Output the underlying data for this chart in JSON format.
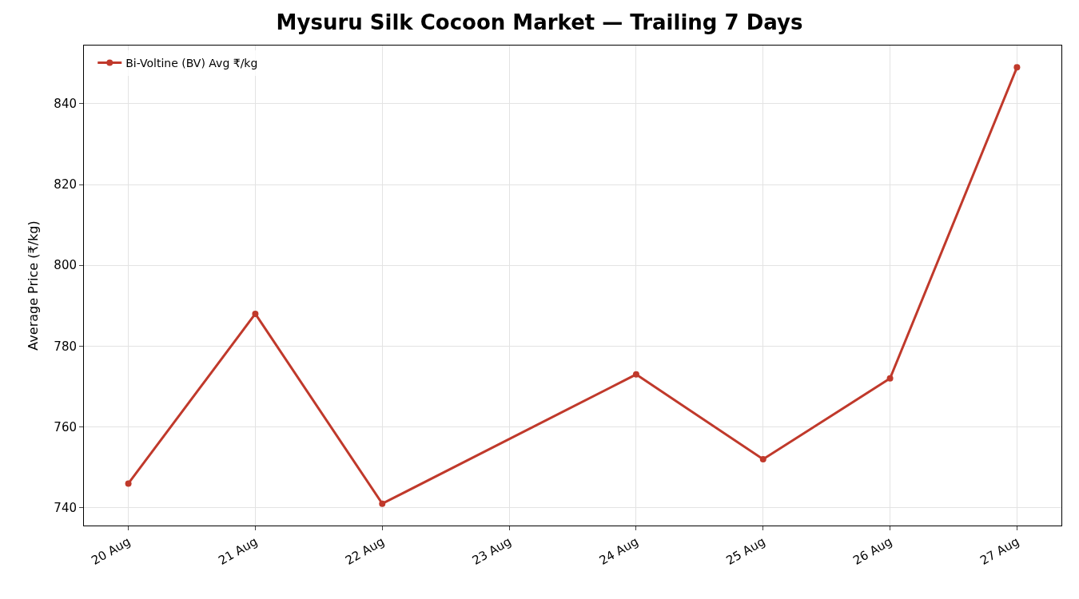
{
  "chart_data": {
    "type": "line",
    "title": "Mysuru Silk Cocoon Market — Trailing 7 Days",
    "ylabel": "Average Price (₹/kg)",
    "x": [
      "--08-20",
      "--08-21",
      "--08-22",
      "--08-24",
      "--08-25",
      "--08-26",
      "--08-27"
    ],
    "series": [
      {
        "name": "Bi-Voltine (BV) Avg ₹/kg",
        "color": "#c0392b",
        "values": [
          746,
          788,
          741,
          773,
          752,
          772,
          849
        ]
      }
    ],
    "xlim": [
      "--08-19T15:36",
      "--08-27T08:24"
    ],
    "xticks": [
      {
        "value": "--08-20",
        "label": "20 Aug"
      },
      {
        "value": "--08-21",
        "label": "21 Aug"
      },
      {
        "value": "--08-22",
        "label": "22 Aug"
      },
      {
        "value": "--08-23",
        "label": "23 Aug"
      },
      {
        "value": "--08-24",
        "label": "24 Aug"
      },
      {
        "value": "--08-25",
        "label": "25 Aug"
      },
      {
        "value": "--08-26",
        "label": "26 Aug"
      },
      {
        "value": "--08-27",
        "label": "27 Aug"
      }
    ],
    "ylim": [
      735.6,
      854.4
    ],
    "yticks": [
      740,
      760,
      780,
      800,
      820,
      840
    ],
    "grid": true,
    "legend": "top left",
    "marker": "circle",
    "line_style": "solid"
  }
}
